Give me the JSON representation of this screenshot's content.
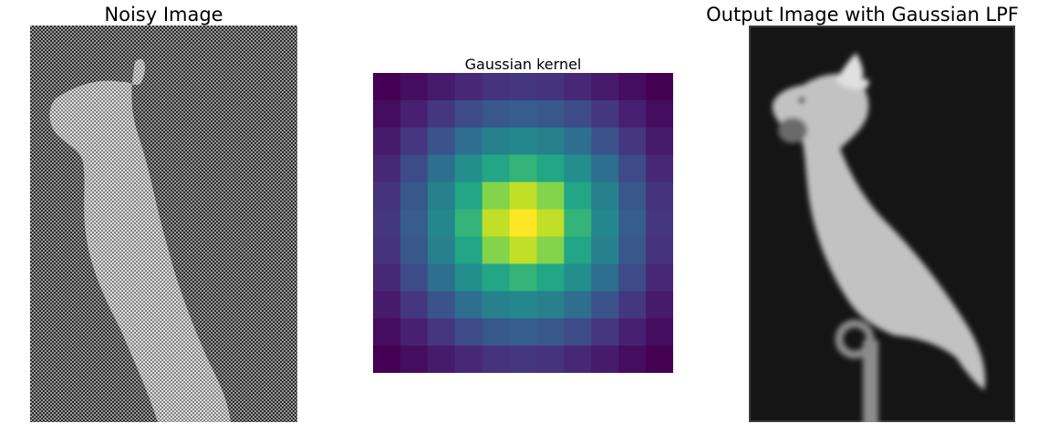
{
  "panels": {
    "noisy": {
      "title": "Noisy Image"
    },
    "kernel": {
      "title": "Gaussian kernel"
    },
    "output": {
      "title": "Output Image with Gaussian LPF"
    }
  },
  "chart_data": [
    {
      "type": "image",
      "title": "Noisy Image",
      "grid": false
    },
    {
      "type": "heatmap",
      "title": "Gaussian kernel",
      "grid": false,
      "size": 11,
      "sigma": 3,
      "colormap": "viridis"
    },
    {
      "type": "image",
      "title": "Output Image with Gaussian LPF",
      "grid": false
    }
  ],
  "colors": {
    "background": "#ffffff",
    "image_dark": "#1a1a1a",
    "image_mid": "#808080",
    "bird_light": "#c8c8c8"
  }
}
